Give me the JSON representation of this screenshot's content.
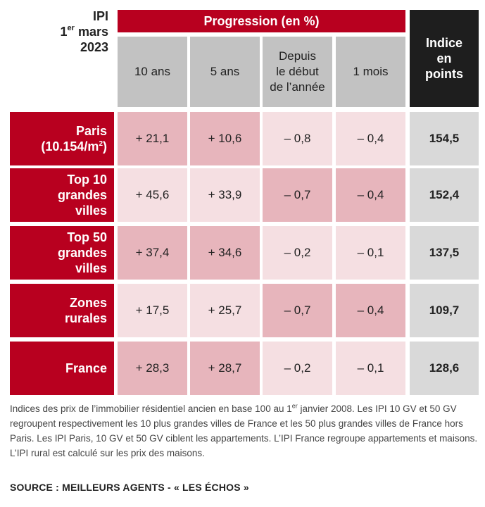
{
  "corner": {
    "line1": "IPI",
    "line2_num": "1",
    "line2_sup": "er",
    "line2_rest": " mars",
    "line3": "2023"
  },
  "header": {
    "progression": "Progression (en %)",
    "columns": [
      "10 ans",
      "5 ans",
      "Depuis\nle début\nde l’année",
      "1 mois"
    ],
    "indice": "Indice\nen\npoints"
  },
  "chart_data": {
    "type": "table",
    "columns": [
      "10 ans",
      "5 ans",
      "Depuis le début de l’année",
      "1 mois",
      "Indice en points"
    ],
    "rows": [
      {
        "label": "Paris",
        "sublabel": "(10.154/m",
        "sublabel_sup": "2",
        "sublabel_end": ")",
        "values": [
          "+ 21,1",
          "+ 10,6",
          "– 0,8",
          "– 0,4",
          "154,5"
        ]
      },
      {
        "label": "Top 10\ngrandes\nvilles",
        "values": [
          "+ 45,6",
          "+ 33,9",
          "– 0,7",
          "– 0,4",
          "152,4"
        ]
      },
      {
        "label": "Top 50\ngrandes\nvilles",
        "values": [
          "+ 37,4",
          "+ 34,6",
          "– 0,2",
          "– 0,1",
          "137,5"
        ]
      },
      {
        "label": "Zones\nrurales",
        "values": [
          "+ 17,5",
          "+ 25,7",
          "– 0,7",
          "– 0,4",
          "109,7"
        ]
      },
      {
        "label": "France",
        "values": [
          "+ 28,3",
          "+ 28,7",
          "– 0,2",
          "– 0,1",
          "128,6"
        ]
      }
    ]
  },
  "colors": {
    "red": "#b8001f",
    "black": "#1e1e1e",
    "header_grey": "#c2c2c2",
    "cell_dark": "#e7b5bc",
    "cell_light": "#f5dfe2",
    "index_grey": "#d9d9d9"
  },
  "footnote": {
    "part1": "Indices des prix de l’immobilier résidentiel ancien en base 100 au 1",
    "sup": "er",
    "part2": " janvier 2008. Les IPI 10 GV et 50 GV regroupent respectivement les 10 plus grandes villes de France et les 50 plus grandes villes de France hors Paris. Les IPI Paris, 10 GV et 50 GV ciblent les appartements. L’IPI France regroupe appartements et maisons. L’IPI rural est calculé sur les prix des maisons."
  },
  "source": "SOURCE : MEILLEURS AGENTS - « LES ÉCHOS »"
}
